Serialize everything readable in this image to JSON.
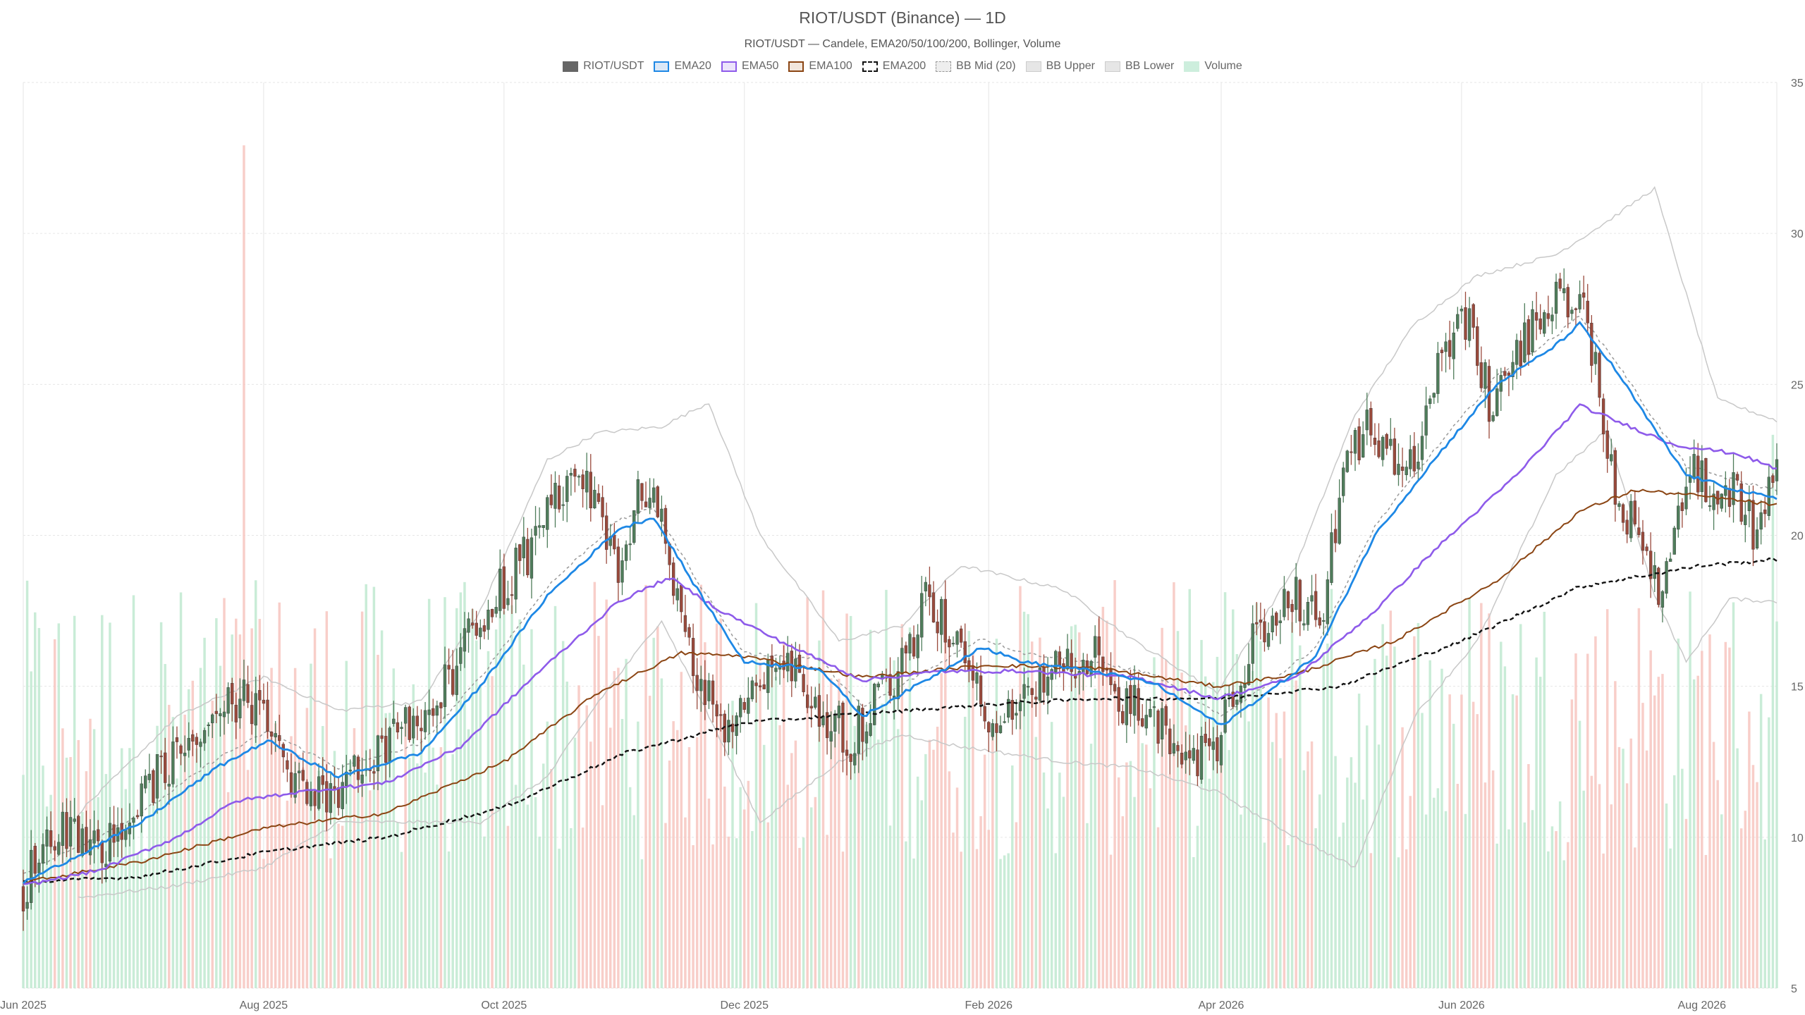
{
  "chart_data": {
    "type": "candlestick",
    "title": "RIOT/USDT (Binance) — 1D",
    "subtitle": "RIOT/USDT — Candele, EMA20/50/100/200, Bollinger, Volume",
    "x_range": [
      "2025-06-01",
      "2026-08-20"
    ],
    "x_tick_labels": [
      "Jun 2025",
      "Aug 2025",
      "Oct 2025",
      "Dec 2025",
      "Feb 2026",
      "Apr 2026",
      "Jun 2026",
      "Aug 2026"
    ],
    "x_tick_dates": [
      "2025-06-01",
      "2025-08-01",
      "2025-10-01",
      "2025-12-01",
      "2026-02-01",
      "2026-04-01",
      "2026-06-01",
      "2026-08-01"
    ],
    "y_axis": {
      "position": "right",
      "min": 5,
      "max": 35,
      "ticks": [
        5,
        10,
        15,
        20,
        25,
        30,
        35
      ]
    },
    "grid": true,
    "legend_position": "top-center",
    "legend": [
      {
        "label": "RIOT/USDT",
        "swatch": "solid",
        "color": "#666666"
      },
      {
        "label": "EMA20",
        "swatch": "outline",
        "color": "#1e88e5",
        "fill": "#dbe8f7"
      },
      {
        "label": "EMA50",
        "swatch": "outline",
        "color": "#8e5bea",
        "fill": "#ece4fb"
      },
      {
        "label": "EMA100",
        "swatch": "outline",
        "color": "#8b4513",
        "fill": "#f2e6dc"
      },
      {
        "label": "EMA200",
        "swatch": "dashed",
        "color": "#111111",
        "fill": "#ffffff"
      },
      {
        "label": "BB Mid (20)",
        "swatch": "dotted",
        "color": "#999999",
        "fill": "#eeeeee"
      },
      {
        "label": "BB Upper",
        "swatch": "solid-light",
        "color": "#cccccc",
        "fill": "#e6e6e6"
      },
      {
        "label": "BB Lower",
        "swatch": "solid-light",
        "color": "#cccccc",
        "fill": "#e6e6e6"
      },
      {
        "label": "Volume",
        "swatch": "solid-light",
        "color": "#cdeedd",
        "fill": "#cdeedd"
      }
    ],
    "colors": {
      "up": "#4f7d5b",
      "down": "#9a4a3c",
      "ema20": "#1e88e5",
      "ema50": "#8e5bea",
      "ema100": "#8b4513",
      "ema200": "#111111",
      "bb_mid": "#999999",
      "bb_band": "#c8c8c8",
      "volume_up": "#bfe9d0",
      "volume_down": "#f7c6c0",
      "grid": "#e6e6e6"
    },
    "price_anchors": [
      [
        "2025-06-01",
        8.3
      ],
      [
        "2025-06-05",
        9.6
      ],
      [
        "2025-06-12",
        10.3
      ],
      [
        "2025-06-20",
        9.6
      ],
      [
        "2025-06-28",
        10.3
      ],
      [
        "2025-07-05",
        12.0
      ],
      [
        "2025-07-12",
        12.8
      ],
      [
        "2025-07-20",
        14.0
      ],
      [
        "2025-07-26",
        14.6
      ],
      [
        "2025-08-02",
        13.5
      ],
      [
        "2025-08-08",
        11.5
      ],
      [
        "2025-08-15",
        11.3
      ],
      [
        "2025-08-22",
        11.9
      ],
      [
        "2025-08-30",
        12.6
      ],
      [
        "2025-09-05",
        13.5
      ],
      [
        "2025-09-12",
        14.0
      ],
      [
        "2025-09-20",
        16.0
      ],
      [
        "2025-09-28",
        17.8
      ],
      [
        "2025-10-05",
        19.0
      ],
      [
        "2025-10-12",
        20.5
      ],
      [
        "2025-10-18",
        22.0
      ],
      [
        "2025-10-24",
        21.0
      ],
      [
        "2025-10-30",
        19.0
      ],
      [
        "2025-11-05",
        21.5
      ],
      [
        "2025-11-10",
        20.5
      ],
      [
        "2025-11-15",
        17.5
      ],
      [
        "2025-11-20",
        15.0
      ],
      [
        "2025-11-27",
        13.6
      ],
      [
        "2025-12-03",
        14.5
      ],
      [
        "2025-12-08",
        15.6
      ],
      [
        "2025-12-14",
        15.2
      ],
      [
        "2025-12-20",
        14.3
      ],
      [
        "2025-12-28",
        13.3
      ],
      [
        "2026-01-03",
        14.5
      ],
      [
        "2026-01-10",
        15.5
      ],
      [
        "2026-01-16",
        17.8
      ],
      [
        "2026-01-22",
        16.8
      ],
      [
        "2026-01-28",
        15.8
      ],
      [
        "2026-02-02",
        13.6
      ],
      [
        "2026-02-08",
        14.6
      ],
      [
        "2026-02-14",
        14.9
      ],
      [
        "2026-02-20",
        15.6
      ],
      [
        "2026-02-28",
        16.0
      ],
      [
        "2026-03-06",
        14.5
      ],
      [
        "2026-03-12",
        14.2
      ],
      [
        "2026-03-18",
        13.5
      ],
      [
        "2026-03-25",
        12.4
      ],
      [
        "2026-04-01",
        13.3
      ],
      [
        "2026-04-06",
        15.6
      ],
      [
        "2026-04-12",
        17.0
      ],
      [
        "2026-04-20",
        18.0
      ],
      [
        "2026-04-26",
        17.0
      ],
      [
        "2026-05-03",
        22.5
      ],
      [
        "2026-05-08",
        23.5
      ],
      [
        "2026-05-14",
        22.5
      ],
      [
        "2026-05-20",
        22.0
      ],
      [
        "2026-05-27",
        26.5
      ],
      [
        "2026-06-03",
        27.0
      ],
      [
        "2026-06-08",
        24.5
      ],
      [
        "2026-06-14",
        26.0
      ],
      [
        "2026-06-20",
        27.0
      ],
      [
        "2026-06-27",
        28.0
      ],
      [
        "2026-07-02",
        27.5
      ],
      [
        "2026-07-06",
        25.0
      ],
      [
        "2026-07-10",
        21.5
      ],
      [
        "2026-07-16",
        20.0
      ],
      [
        "2026-07-22",
        18.0
      ],
      [
        "2026-07-26",
        21.5
      ],
      [
        "2026-07-31",
        22.0
      ],
      [
        "2026-08-05",
        20.5
      ],
      [
        "2026-08-10",
        21.5
      ],
      [
        "2026-08-15",
        20.0
      ],
      [
        "2026-08-20",
        22.5
      ]
    ],
    "ema20_anchors": [
      [
        "2025-06-01",
        8.5
      ],
      [
        "2025-06-15",
        9.4
      ],
      [
        "2025-07-01",
        10.5
      ],
      [
        "2025-07-20",
        12.3
      ],
      [
        "2025-08-02",
        13.2
      ],
      [
        "2025-08-20",
        12.0
      ],
      [
        "2025-09-10",
        12.8
      ],
      [
        "2025-09-25",
        15.0
      ],
      [
        "2025-10-12",
        18.0
      ],
      [
        "2025-10-30",
        20.2
      ],
      [
        "2025-11-08",
        20.6
      ],
      [
        "2025-11-20",
        18.0
      ],
      [
        "2025-12-01",
        15.8
      ],
      [
        "2025-12-20",
        15.6
      ],
      [
        "2025-12-31",
        14.0
      ],
      [
        "2026-01-20",
        15.5
      ],
      [
        "2026-01-30",
        16.3
      ],
      [
        "2026-02-10",
        15.8
      ],
      [
        "2026-02-28",
        15.5
      ],
      [
        "2026-03-15",
        15.1
      ],
      [
        "2026-04-01",
        13.7
      ],
      [
        "2026-04-15",
        15.0
      ],
      [
        "2026-04-25",
        16.0
      ],
      [
        "2026-05-10",
        20.0
      ],
      [
        "2026-05-25",
        22.5
      ],
      [
        "2026-06-10",
        25.0
      ],
      [
        "2026-06-25",
        26.3
      ],
      [
        "2026-07-01",
        27.0
      ],
      [
        "2026-07-10",
        25.5
      ],
      [
        "2026-07-20",
        23.5
      ],
      [
        "2026-07-28",
        22.0
      ],
      [
        "2026-08-10",
        21.5
      ],
      [
        "2026-08-20",
        21.2
      ]
    ],
    "ema50_anchors": [
      [
        "2025-06-01",
        8.4
      ],
      [
        "2025-06-20",
        8.9
      ],
      [
        "2025-07-10",
        10.0
      ],
      [
        "2025-07-25",
        11.2
      ],
      [
        "2025-08-10",
        11.5
      ],
      [
        "2025-09-01",
        11.8
      ],
      [
        "2025-09-20",
        13.0
      ],
      [
        "2025-10-10",
        15.5
      ],
      [
        "2025-10-30",
        17.8
      ],
      [
        "2025-11-12",
        18.6
      ],
      [
        "2025-11-25",
        17.5
      ],
      [
        "2025-12-10",
        16.5
      ],
      [
        "2025-12-31",
        15.2
      ],
      [
        "2026-01-20",
        15.5
      ],
      [
        "2026-02-10",
        15.5
      ],
      [
        "2026-03-10",
        15.3
      ],
      [
        "2026-03-31",
        14.6
      ],
      [
        "2026-04-20",
        15.3
      ],
      [
        "2026-05-10",
        17.5
      ],
      [
        "2026-05-25",
        19.5
      ],
      [
        "2026-06-15",
        22.0
      ],
      [
        "2026-07-01",
        24.3
      ],
      [
        "2026-07-10",
        23.8
      ],
      [
        "2026-07-25",
        23.0
      ],
      [
        "2026-08-10",
        22.7
      ],
      [
        "2026-08-20",
        22.2
      ]
    ],
    "ema100_anchors": [
      [
        "2025-06-01",
        8.5
      ],
      [
        "2025-07-01",
        9.2
      ],
      [
        "2025-08-01",
        10.3
      ],
      [
        "2025-09-01",
        10.8
      ],
      [
        "2025-10-01",
        12.5
      ],
      [
        "2025-10-25",
        14.8
      ],
      [
        "2025-11-15",
        16.1
      ],
      [
        "2025-12-01",
        16.0
      ],
      [
        "2025-12-31",
        15.3
      ],
      [
        "2026-02-01",
        15.7
      ],
      [
        "2026-03-01",
        15.6
      ],
      [
        "2026-03-31",
        15.0
      ],
      [
        "2026-04-20",
        15.4
      ],
      [
        "2026-05-15",
        16.5
      ],
      [
        "2026-06-10",
        18.5
      ],
      [
        "2026-07-01",
        20.8
      ],
      [
        "2026-07-15",
        21.5
      ],
      [
        "2026-08-01",
        21.3
      ],
      [
        "2026-08-20",
        21.0
      ]
    ],
    "ema200_anchors": [
      [
        "2025-06-01",
        8.5
      ],
      [
        "2025-07-01",
        8.7
      ],
      [
        "2025-08-01",
        9.5
      ],
      [
        "2025-09-01",
        10.0
      ],
      [
        "2025-10-01",
        11.0
      ],
      [
        "2025-11-01",
        12.8
      ],
      [
        "2025-12-01",
        13.8
      ],
      [
        "2026-01-01",
        14.1
      ],
      [
        "2026-02-01",
        14.4
      ],
      [
        "2026-03-01",
        14.6
      ],
      [
        "2026-04-01",
        14.6
      ],
      [
        "2026-05-01",
        15.0
      ],
      [
        "2026-06-01",
        16.5
      ],
      [
        "2026-07-01",
        18.3
      ],
      [
        "2026-08-01",
        19.0
      ],
      [
        "2026-08-20",
        19.2
      ]
    ],
    "bb_upper_anchors": [
      [
        "2025-06-15",
        10.8
      ],
      [
        "2025-07-10",
        14.0
      ],
      [
        "2025-08-01",
        15.3
      ],
      [
        "2025-08-20",
        14.2
      ],
      [
        "2025-09-10",
        14.5
      ],
      [
        "2025-09-25",
        17.5
      ],
      [
        "2025-10-12",
        22.5
      ],
      [
        "2025-10-25",
        23.4
      ],
      [
        "2025-11-10",
        23.6
      ],
      [
        "2025-11-22",
        24.4
      ],
      [
        "2025-12-05",
        20.0
      ],
      [
        "2025-12-25",
        16.5
      ],
      [
        "2026-01-10",
        17.0
      ],
      [
        "2026-01-25",
        19.0
      ],
      [
        "2026-02-20",
        18.2
      ],
      [
        "2026-03-10",
        16.5
      ],
      [
        "2026-03-31",
        14.8
      ],
      [
        "2026-04-20",
        19.0
      ],
      [
        "2026-05-05",
        24.0
      ],
      [
        "2026-05-20",
        27.0
      ],
      [
        "2026-06-05",
        28.6
      ],
      [
        "2026-06-25",
        29.3
      ],
      [
        "2026-07-08",
        30.4
      ],
      [
        "2026-07-20",
        31.5
      ],
      [
        "2026-08-05",
        24.5
      ],
      [
        "2026-08-20",
        23.8
      ]
    ],
    "bb_lower_anchors": [
      [
        "2025-06-15",
        8.0
      ],
      [
        "2025-07-10",
        8.4
      ],
      [
        "2025-08-01",
        9.0
      ],
      [
        "2025-08-20",
        10.5
      ],
      [
        "2025-09-10",
        10.5
      ],
      [
        "2025-09-25",
        10.5
      ],
      [
        "2025-10-12",
        12.0
      ],
      [
        "2025-10-25",
        14.5
      ],
      [
        "2025-11-10",
        17.2
      ],
      [
        "2025-11-22",
        14.0
      ],
      [
        "2025-12-05",
        10.5
      ],
      [
        "2025-12-25",
        12.5
      ],
      [
        "2026-01-10",
        13.4
      ],
      [
        "2026-01-25",
        13.0
      ],
      [
        "2026-02-20",
        12.5
      ],
      [
        "2026-03-10",
        12.3
      ],
      [
        "2026-03-31",
        11.5
      ],
      [
        "2026-04-20",
        10.0
      ],
      [
        "2026-05-05",
        9.0
      ],
      [
        "2026-05-20",
        14.0
      ],
      [
        "2026-06-05",
        16.5
      ],
      [
        "2026-06-25",
        22.0
      ],
      [
        "2026-07-08",
        23.5
      ],
      [
        "2026-07-20",
        18.0
      ],
      [
        "2026-07-28",
        15.8
      ],
      [
        "2026-08-08",
        17.9
      ],
      [
        "2026-08-20",
        17.8
      ]
    ],
    "volume_note": "volume bars on secondary (unlabeled) scale, colored by candle direction; peak spike around 2025-07-27"
  }
}
